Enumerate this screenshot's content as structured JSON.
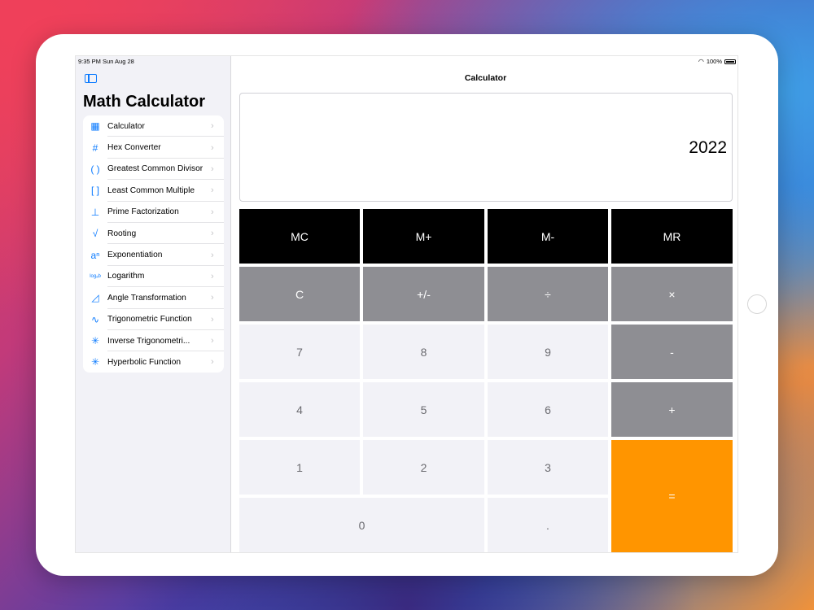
{
  "status": {
    "time": "9:35 PM   Sun Aug 28",
    "battery": "100%"
  },
  "sidebar": {
    "title": "Math Calculator",
    "items": [
      {
        "label": "Calculator",
        "icon": "calculator-icon",
        "glyph": "▦"
      },
      {
        "label": "Hex Converter",
        "icon": "hash-icon",
        "glyph": "#"
      },
      {
        "label": "Greatest Common Divisor",
        "icon": "parentheses-icon",
        "glyph": "( )"
      },
      {
        "label": "Least Common Multiple",
        "icon": "brackets-icon",
        "glyph": "[ ]"
      },
      {
        "label": "Prime Factorization",
        "icon": "tree-icon",
        "glyph": "⊥"
      },
      {
        "label": "Rooting",
        "icon": "square-root-icon",
        "glyph": "√"
      },
      {
        "label": "Exponentiation",
        "icon": "exponent-icon",
        "glyph": "aⁿ"
      },
      {
        "label": "Logarithm",
        "icon": "log-icon",
        "glyph": "logₐb"
      },
      {
        "label": "Angle Transformation",
        "icon": "angle-icon",
        "glyph": "◿"
      },
      {
        "label": "Trigonometric Function",
        "icon": "sine-wave-icon",
        "glyph": "∿"
      },
      {
        "label": "Inverse Trigonometri...",
        "icon": "inverse-trig-icon",
        "glyph": "✳"
      },
      {
        "label": "Hyperbolic Function",
        "icon": "hyperbolic-icon",
        "glyph": "✳"
      }
    ]
  },
  "main": {
    "nav_title": "Calculator",
    "display_value": "2022"
  },
  "keys": {
    "mc": "MC",
    "mplus": "M+",
    "mminus": "M-",
    "mr": "MR",
    "clear": "C",
    "sign": "+/-",
    "divide": "÷",
    "multiply": "×",
    "seven": "7",
    "eight": "8",
    "nine": "9",
    "minus": "-",
    "four": "4",
    "five": "5",
    "six": "6",
    "plus": "+",
    "one": "1",
    "two": "2",
    "three": "3",
    "equals": "=",
    "zero": "0",
    "dot": "."
  },
  "colors": {
    "accent": "#0a7aff",
    "orange": "#ff9500",
    "gray": "#8e8e93",
    "light": "#f2f2f7",
    "dark": "#000000"
  }
}
